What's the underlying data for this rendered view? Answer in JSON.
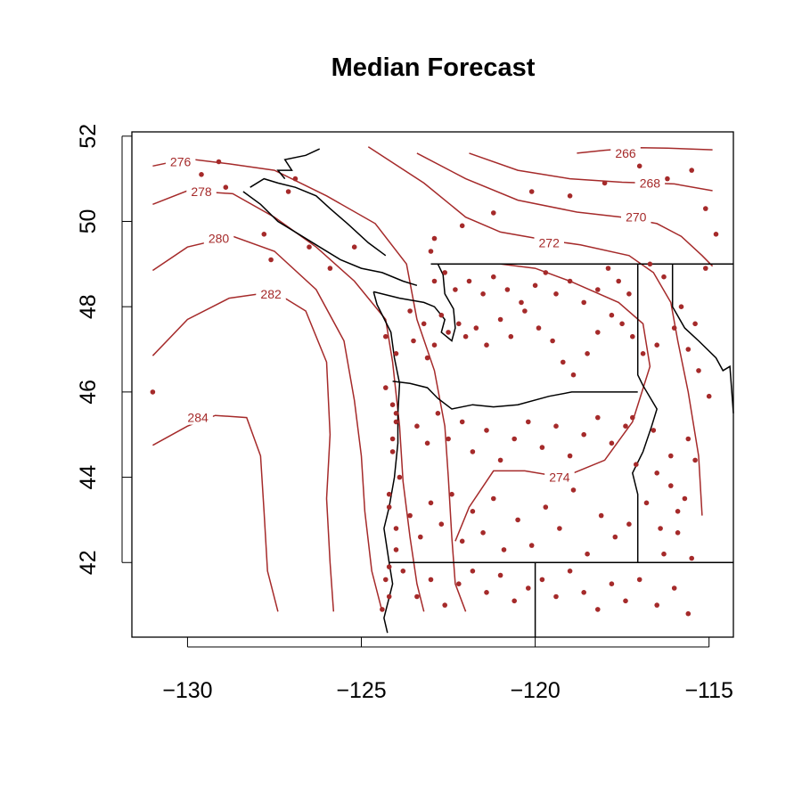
{
  "colors": {
    "accent": "#a52a2a",
    "frame": "#000000",
    "background": "#ffffff"
  },
  "chart_data": {
    "type": "scatter",
    "title": "Median Forecast",
    "xlabel": "",
    "ylabel": "",
    "xlim": [
      -131.6,
      -114.3
    ],
    "ylim": [
      40.25,
      52.1
    ],
    "x_ticks": [
      -130,
      -125,
      -120,
      -115
    ],
    "x_tick_labels": [
      "−130",
      "−125",
      "−120",
      "−115"
    ],
    "y_ticks": [
      42,
      44,
      46,
      48,
      50,
      52
    ],
    "y_tick_labels": [
      "42",
      "44",
      "46",
      "48",
      "50",
      "52"
    ],
    "grid": false,
    "contour_levels": [
      {
        "value": 266,
        "label": "266",
        "label_at": [
          -117.4,
          51.6
        ]
      },
      {
        "value": 268,
        "label": "268",
        "label_at": [
          -116.7,
          50.9
        ]
      },
      {
        "value": 270,
        "label": "270",
        "label_at": [
          -117.1,
          50.1
        ]
      },
      {
        "value": 272,
        "label": "272",
        "label_at": [
          -119.6,
          49.5
        ]
      },
      {
        "value": 274,
        "label": "274",
        "label_at": [
          -119.3,
          44.0
        ]
      },
      {
        "value": 276,
        "label": "276",
        "label_at": [
          -130.2,
          51.4
        ]
      },
      {
        "value": 278,
        "label": "278",
        "label_at": [
          -129.6,
          50.7
        ]
      },
      {
        "value": 280,
        "label": "280",
        "label_at": [
          -129.1,
          49.6
        ]
      },
      {
        "value": 282,
        "label": "282",
        "label_at": [
          -127.6,
          48.3
        ]
      },
      {
        "value": 284,
        "label": "284",
        "label_at": [
          -129.7,
          45.4
        ]
      }
    ],
    "contour_lines": [
      [
        [
          -118.8,
          51.6
        ],
        [
          -118.0,
          51.67
        ],
        [
          -117.0,
          51.73
        ],
        [
          -116.2,
          51.72
        ],
        [
          -114.9,
          51.68
        ]
      ],
      [
        [
          -121.9,
          51.6
        ],
        [
          -120.5,
          51.2
        ],
        [
          -119.0,
          51.0
        ],
        [
          -117.5,
          50.92
        ],
        [
          -116.0,
          50.88
        ],
        [
          -114.9,
          50.72
        ]
      ],
      [
        [
          -123.4,
          51.6
        ],
        [
          -122.0,
          51.0
        ],
        [
          -120.5,
          50.5
        ],
        [
          -118.8,
          50.22
        ],
        [
          -117.5,
          50.1
        ],
        [
          -116.5,
          49.95
        ],
        [
          -115.8,
          49.65
        ],
        [
          -115.2,
          49.2
        ],
        [
          -114.9,
          48.95
        ]
      ],
      [
        [
          -124.8,
          51.75
        ],
        [
          -123.2,
          50.9
        ],
        [
          -122.0,
          50.1
        ],
        [
          -121.0,
          49.75
        ],
        [
          -119.8,
          49.58
        ],
        [
          -118.7,
          49.45
        ],
        [
          -117.3,
          49.2
        ],
        [
          -116.6,
          48.8
        ],
        [
          -116.1,
          48.1
        ],
        [
          -115.9,
          47.2
        ],
        [
          -115.6,
          46.0
        ],
        [
          -115.3,
          44.5
        ],
        [
          -115.2,
          43.1
        ]
      ],
      [
        [
          -121.0,
          49.0
        ],
        [
          -120.0,
          48.9
        ],
        [
          -119.0,
          48.6
        ],
        [
          -117.6,
          48.1
        ],
        [
          -116.9,
          47.6
        ],
        [
          -116.7,
          46.6
        ],
        [
          -117.2,
          45.3
        ],
        [
          -118.0,
          44.4
        ],
        [
          -119.2,
          44.0
        ],
        [
          -120.3,
          44.15
        ],
        [
          -121.2,
          44.15
        ],
        [
          -121.9,
          43.3
        ],
        [
          -122.3,
          42.5
        ]
      ],
      [
        [
          -131.0,
          51.3
        ],
        [
          -130.0,
          51.47
        ],
        [
          -128.8,
          51.35
        ],
        [
          -127.5,
          51.2
        ],
        [
          -126.0,
          50.6
        ],
        [
          -124.6,
          49.95
        ],
        [
          -123.7,
          49.0
        ],
        [
          -123.4,
          47.7
        ],
        [
          -122.9,
          46.5
        ],
        [
          -122.6,
          45.2
        ],
        [
          -122.5,
          44.0
        ],
        [
          -122.4,
          42.6
        ],
        [
          -122.3,
          41.5
        ],
        [
          -122.0,
          40.85
        ]
      ],
      [
        [
          -131.0,
          50.4
        ],
        [
          -130.0,
          50.72
        ],
        [
          -128.7,
          50.65
        ],
        [
          -127.5,
          50.1
        ],
        [
          -126.3,
          49.4
        ],
        [
          -125.2,
          48.6
        ],
        [
          -124.3,
          47.7
        ],
        [
          -124.1,
          46.7
        ],
        [
          -123.9,
          45.2
        ],
        [
          -123.8,
          43.9
        ],
        [
          -123.6,
          42.6
        ],
        [
          -123.4,
          41.5
        ],
        [
          -123.2,
          40.85
        ]
      ],
      [
        [
          -131.0,
          48.85
        ],
        [
          -130.0,
          49.4
        ],
        [
          -128.7,
          49.65
        ],
        [
          -127.5,
          49.3
        ],
        [
          -126.3,
          48.4
        ],
        [
          -125.5,
          47.2
        ],
        [
          -125.2,
          45.8
        ],
        [
          -125.0,
          44.5
        ],
        [
          -124.9,
          43.2
        ],
        [
          -124.7,
          41.8
        ],
        [
          -124.4,
          40.85
        ]
      ],
      [
        [
          -131.0,
          46.85
        ],
        [
          -130.0,
          47.7
        ],
        [
          -128.8,
          48.2
        ],
        [
          -127.5,
          48.35
        ],
        [
          -126.6,
          47.9
        ],
        [
          -126.0,
          46.7
        ],
        [
          -125.9,
          45.0
        ],
        [
          -126.0,
          43.5
        ],
        [
          -125.9,
          42.0
        ],
        [
          -125.8,
          40.85
        ]
      ],
      [
        [
          -131.0,
          44.75
        ],
        [
          -130.0,
          45.2
        ],
        [
          -129.2,
          45.45
        ],
        [
          -128.3,
          45.4
        ],
        [
          -127.9,
          44.5
        ],
        [
          -127.8,
          43.2
        ],
        [
          -127.7,
          41.8
        ],
        [
          -127.4,
          40.85
        ]
      ]
    ],
    "borders": [
      [
        [
          -124.25,
          40.35
        ],
        [
          -124.35,
          40.7
        ],
        [
          -124.1,
          41.5
        ],
        [
          -124.2,
          42.0
        ],
        [
          -124.35,
          42.8
        ],
        [
          -124.2,
          43.3
        ],
        [
          -124.05,
          44.0
        ],
        [
          -123.95,
          44.8
        ],
        [
          -123.95,
          45.5
        ],
        [
          -123.9,
          46.2
        ],
        [
          -124.05,
          46.8
        ],
        [
          -124.15,
          47.4
        ],
        [
          -124.55,
          48.05
        ],
        [
          -124.65,
          48.35
        ]
      ],
      [
        [
          -124.65,
          48.35
        ],
        [
          -123.9,
          48.2
        ],
        [
          -123.2,
          48.1
        ],
        [
          -122.9,
          48.0
        ],
        [
          -122.6,
          47.7
        ],
        [
          -122.7,
          47.4
        ],
        [
          -122.4,
          47.2
        ],
        [
          -122.3,
          47.5
        ],
        [
          -122.35,
          47.95
        ],
        [
          -122.6,
          48.3
        ],
        [
          -122.65,
          48.75
        ],
        [
          -122.8,
          49.0
        ]
      ],
      [
        [
          -124.1,
          46.25
        ],
        [
          -123.6,
          46.2
        ],
        [
          -123.1,
          46.1
        ],
        [
          -122.8,
          45.85
        ],
        [
          -122.4,
          45.6
        ],
        [
          -121.8,
          45.7
        ],
        [
          -121.2,
          45.65
        ],
        [
          -120.5,
          45.7
        ],
        [
          -119.6,
          45.9
        ],
        [
          -118.95,
          46.0
        ],
        [
          -117.05,
          46.0
        ]
      ],
      [
        [
          -123.0,
          49.0
        ],
        [
          -117.05,
          49.0
        ],
        [
          -114.3,
          49.0
        ]
      ],
      [
        [
          -117.05,
          49.0
        ],
        [
          -117.05,
          46.4
        ],
        [
          -116.9,
          46.15
        ],
        [
          -116.5,
          45.6
        ],
        [
          -116.65,
          45.2
        ],
        [
          -116.9,
          44.6
        ],
        [
          -117.2,
          44.1
        ],
        [
          -117.05,
          43.6
        ],
        [
          -117.05,
          42.0
        ]
      ],
      [
        [
          -124.2,
          42.0
        ],
        [
          -120.0,
          42.0
        ],
        [
          -117.05,
          42.0
        ],
        [
          -114.3,
          42.0
        ]
      ],
      [
        [
          -120.0,
          42.0
        ],
        [
          -120.0,
          40.25
        ]
      ],
      [
        [
          -116.05,
          49.0
        ],
        [
          -116.05,
          48.0
        ],
        [
          -115.7,
          47.5
        ],
        [
          -115.3,
          47.2
        ],
        [
          -114.8,
          46.8
        ],
        [
          -114.6,
          46.5
        ],
        [
          -114.4,
          46.6
        ],
        [
          -114.3,
          45.5
        ]
      ],
      [
        [
          -124.3,
          49.2
        ],
        [
          -124.8,
          49.5
        ],
        [
          -125.4,
          49.95
        ],
        [
          -125.9,
          50.3
        ],
        [
          -126.3,
          50.6
        ],
        [
          -126.9,
          50.8
        ],
        [
          -127.4,
          50.9
        ],
        [
          -127.8,
          51.0
        ],
        [
          -128.2,
          50.8
        ]
      ],
      [
        [
          -123.4,
          48.5
        ],
        [
          -123.8,
          48.6
        ],
        [
          -124.4,
          48.8
        ],
        [
          -125.0,
          48.9
        ],
        [
          -125.6,
          49.1
        ],
        [
          -126.2,
          49.4
        ],
        [
          -126.8,
          49.7
        ],
        [
          -127.4,
          50.0
        ],
        [
          -127.9,
          50.4
        ],
        [
          -128.4,
          50.7
        ]
      ],
      [
        [
          -126.2,
          51.7
        ],
        [
          -126.6,
          51.55
        ],
        [
          -127.2,
          51.45
        ],
        [
          -127.0,
          51.2
        ],
        [
          -127.4,
          51.2
        ],
        [
          -127.2,
          51.0
        ]
      ]
    ],
    "series": [
      {
        "x": [
          -131.0,
          -129.6,
          -129.1,
          -128.9,
          -127.8,
          -127.6,
          -127.1,
          -126.9,
          -126.5,
          -125.9,
          -125.2,
          -124.3,
          -124.0,
          -124.3,
          -124.1,
          -124.0,
          -124.1,
          -123.9,
          -124.2,
          -124.0,
          -124.0,
          -124.2,
          -124.3,
          -124.4,
          -124.2,
          -124.2,
          -124.1,
          -124.0
        ],
        "y": [
          46.0,
          51.1,
          51.4,
          50.8,
          49.7,
          49.1,
          50.7,
          51.0,
          49.4,
          48.9,
          49.4,
          47.3,
          46.9,
          46.1,
          45.7,
          45.3,
          44.6,
          44.0,
          43.3,
          42.8,
          42.3,
          41.9,
          41.6,
          40.9,
          41.2,
          43.6,
          44.9,
          45.5
        ]
      },
      {
        "x": [
          -123.6,
          -123.2,
          -123.5,
          -122.9,
          -123.1,
          -122.7,
          -122.5,
          -122.2,
          -122.0,
          -121.7,
          -121.4,
          -121.0,
          -120.7,
          -120.3,
          -119.9,
          -119.5,
          -119.2,
          -118.9,
          -118.5,
          -118.2,
          -117.8,
          -117.5,
          -117.2,
          -116.9,
          -116.5,
          -116.0,
          -115.6,
          -115.3,
          -115.0,
          -114.8,
          -115.1,
          -115.5,
          -116.2,
          -117.0,
          -118.0,
          -119.0,
          -120.1,
          -121.2,
          -122.1,
          -122.9,
          -123.0
        ],
        "y": [
          47.9,
          47.6,
          47.2,
          47.1,
          46.8,
          47.8,
          47.4,
          47.6,
          47.3,
          47.5,
          47.1,
          47.7,
          47.3,
          47.9,
          47.5,
          47.2,
          46.7,
          46.4,
          46.9,
          47.4,
          47.8,
          47.6,
          47.3,
          46.9,
          47.1,
          47.5,
          47.0,
          46.5,
          45.9,
          49.7,
          50.3,
          51.2,
          51.0,
          51.3,
          50.9,
          50.6,
          50.7,
          50.2,
          49.9,
          49.6,
          49.3
        ]
      },
      {
        "x": [
          -122.9,
          -122.6,
          -122.3,
          -121.9,
          -121.5,
          -121.2,
          -120.8,
          -120.4,
          -120.0,
          -119.7,
          -119.4,
          -119.0,
          -118.6,
          -118.2,
          -117.9,
          -117.6,
          -117.3,
          -116.7,
          -116.3,
          -115.8,
          -115.4,
          -115.1,
          -115.6,
          -116.1,
          -116.6,
          -117.2
        ],
        "y": [
          48.6,
          48.8,
          48.4,
          48.6,
          48.3,
          48.7,
          48.4,
          48.1,
          48.5,
          48.8,
          48.3,
          48.6,
          48.1,
          48.4,
          48.9,
          48.6,
          48.3,
          49.0,
          48.7,
          48.0,
          47.6,
          48.9,
          44.9,
          44.5,
          45.1,
          45.4
        ]
      },
      {
        "x": [
          -123.4,
          -123.1,
          -122.8,
          -122.5,
          -122.1,
          -121.8,
          -121.4,
          -121.0,
          -120.6,
          -120.2,
          -119.8,
          -119.4,
          -119.0,
          -118.6,
          -118.2,
          -117.8,
          -117.4,
          -117.1,
          -116.5,
          -116.1,
          -115.7,
          -115.4,
          -115.9,
          -116.4
        ],
        "y": [
          45.2,
          44.8,
          45.5,
          44.9,
          45.3,
          44.6,
          45.1,
          44.4,
          44.9,
          45.3,
          44.7,
          45.2,
          44.5,
          45.0,
          45.4,
          44.8,
          45.2,
          44.3,
          44.1,
          43.8,
          43.5,
          44.4,
          43.2,
          42.8
        ]
      },
      {
        "x": [
          -123.6,
          -123.3,
          -123.0,
          -122.7,
          -122.4,
          -122.1,
          -121.8,
          -121.5,
          -121.2,
          -120.9,
          -120.5,
          -120.1,
          -119.7,
          -119.3,
          -118.9,
          -118.5,
          -118.1,
          -117.7,
          -117.3,
          -116.8,
          -116.3,
          -115.9,
          -115.5
        ],
        "y": [
          43.1,
          42.6,
          43.4,
          42.9,
          43.6,
          42.5,
          43.2,
          42.7,
          43.5,
          42.3,
          43.0,
          42.4,
          43.3,
          42.8,
          43.7,
          42.2,
          43.1,
          42.6,
          42.9,
          43.4,
          42.2,
          42.7,
          42.1
        ]
      },
      {
        "x": [
          -123.8,
          -123.4,
          -123.0,
          -122.6,
          -122.2,
          -121.8,
          -121.4,
          -121.0,
          -120.6,
          -120.2,
          -119.8,
          -119.4,
          -119.0,
          -118.6,
          -118.2,
          -117.8,
          -117.4,
          -117.0,
          -116.5,
          -116.0,
          -115.6
        ],
        "y": [
          41.8,
          41.2,
          41.6,
          41.0,
          41.5,
          41.8,
          41.3,
          41.7,
          41.1,
          41.4,
          41.6,
          41.2,
          41.8,
          41.3,
          40.9,
          41.5,
          41.1,
          41.6,
          41.0,
          41.4,
          40.8
        ]
      }
    ]
  }
}
